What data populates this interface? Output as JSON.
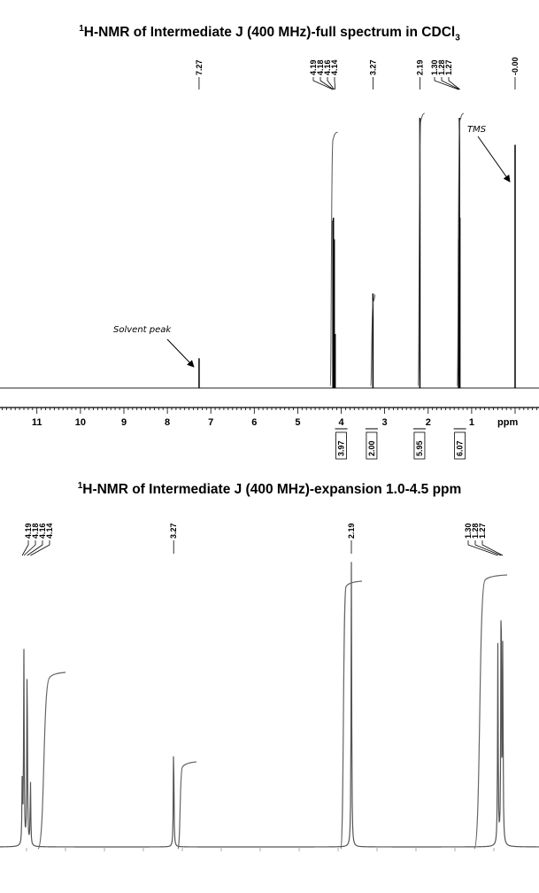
{
  "chart_data": [
    {
      "type": "line",
      "title": {
        "sup": "1",
        "main": "H-NMR of Intermediate J (400 MHz)-full spectrum in CDCl",
        "sub": "3"
      },
      "xlim": [
        11.85,
        -0.55
      ],
      "x_reversed": true,
      "x_ticks": [
        11,
        10,
        9,
        8,
        7,
        6,
        5,
        4,
        3,
        2,
        1
      ],
      "xlabel": "ppm",
      "peak_labels": [
        "7.27",
        "4.19",
        "4.18",
        "4.16",
        "4.14",
        "3.27",
        "2.19",
        "1.30",
        "1.28",
        "1.27",
        "-0.00"
      ],
      "peaks": [
        {
          "ppm": 7.27,
          "height": 0.11
        },
        {
          "ppm": 4.19,
          "height": 0.62
        },
        {
          "ppm": 4.18,
          "height": 0.63
        },
        {
          "ppm": 4.16,
          "height": 0.55
        },
        {
          "ppm": 4.14,
          "height": 0.2
        },
        {
          "ppm": 3.27,
          "height": 0.35
        },
        {
          "ppm": 2.19,
          "height": 1.0
        },
        {
          "ppm": 1.3,
          "height": 0.55
        },
        {
          "ppm": 1.28,
          "height": 1.0
        },
        {
          "ppm": 1.27,
          "height": 0.63
        },
        {
          "ppm": 0.0,
          "height": 0.9
        }
      ],
      "integrals": [
        {
          "label": "3.97",
          "ppm": 4.0
        },
        {
          "label": "2.00",
          "ppm": 3.3
        },
        {
          "label": "5.95",
          "ppm": 2.2
        },
        {
          "label": "6.07",
          "ppm": 1.27
        }
      ],
      "annotations": [
        {
          "text": "Solvent peak",
          "ppm": 7.27
        },
        {
          "text": "TMS",
          "ppm": 0.0
        }
      ]
    },
    {
      "type": "line",
      "title": {
        "sup": "1",
        "main": "H-NMR of Intermediate J (400 MHz)-expansion 1.0-4.5 ppm"
      },
      "xlim": [
        4.325,
        1.05
      ],
      "x_reversed": true,
      "peak_labels": [
        "4.19",
        "4.18",
        "4.16",
        "4.14",
        "3.27",
        "2.19",
        "1.30",
        "1.28",
        "1.27"
      ],
      "peaks": [
        {
          "ppm": 4.19,
          "height": 0.23
        },
        {
          "ppm": 4.18,
          "height": 0.68
        },
        {
          "ppm": 4.16,
          "height": 0.69
        },
        {
          "ppm": 4.14,
          "height": 0.23
        },
        {
          "ppm": 3.27,
          "height": 0.38
        },
        {
          "ppm": 2.19,
          "height": 1.0
        },
        {
          "ppm": 1.3,
          "height": 0.7
        },
        {
          "ppm": 1.28,
          "height": 1.0
        },
        {
          "ppm": 1.27,
          "height": 0.7
        }
      ]
    }
  ]
}
